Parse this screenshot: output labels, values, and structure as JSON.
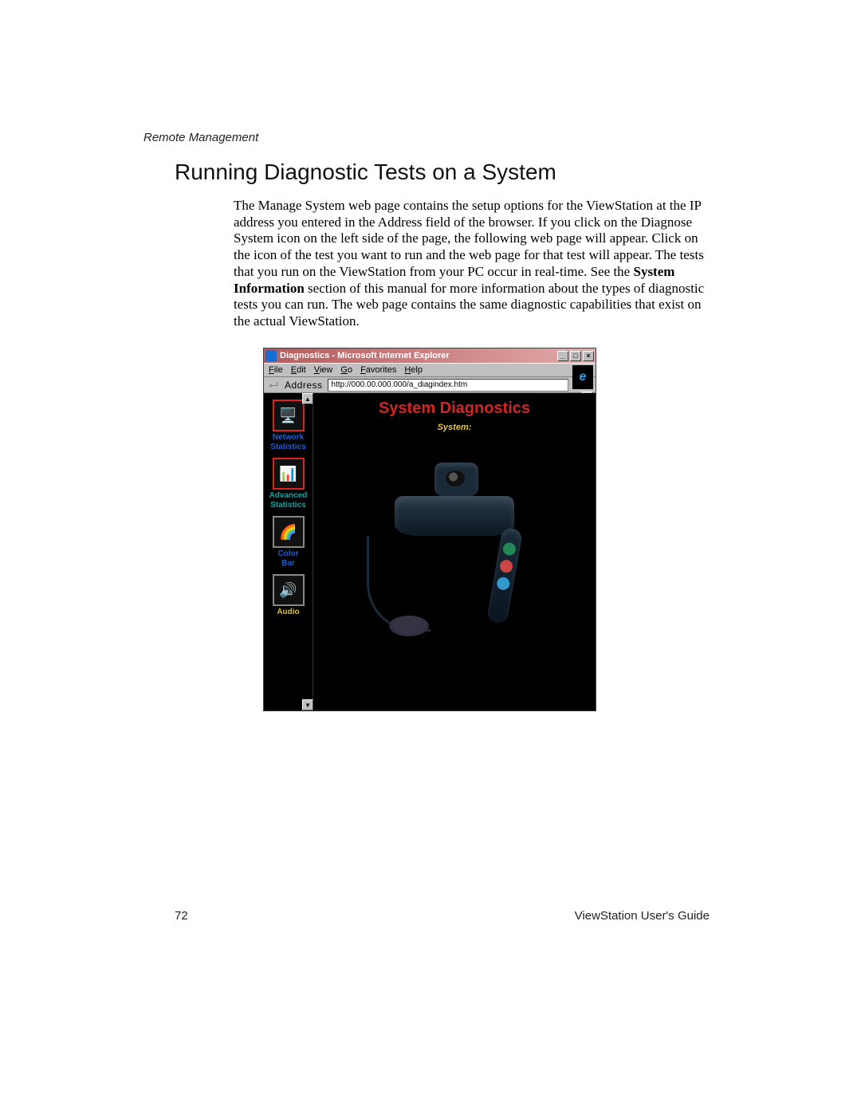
{
  "page": {
    "running_head": "Remote Management",
    "section_title": "Running Diagnostic Tests on a System",
    "body_html": "The Manage System web page contains the setup options for the ViewStation at the IP address you entered in the Address field of the browser. If you click on the Diagnose System icon on the left side of the page, the following web page will appear. Click on the icon of the test you want to run and the web page for that test will appear. The tests that you run on the ViewStation from your PC occur in real-time. See the <b>System Information</b> section of this manual for more information about the types of diagnostic tests you can run. The web page contains the same diagnostic capabilities that exist on the actual ViewStation.",
    "page_number": "72",
    "guide_title": "ViewStation User's Guide"
  },
  "window": {
    "titlebar": {
      "title": "Diagnostics - Microsoft Internet Explorer",
      "gradient_from": "#b55a5a",
      "gradient_to": "#e2aaaa",
      "btn_min": "_",
      "btn_max": "□",
      "btn_close": "×"
    },
    "menus": {
      "file": "File",
      "edit": "Edit",
      "view": "View",
      "go": "Go",
      "favorites": "Favorites",
      "help": "Help"
    },
    "toolbar": {
      "address_label": "Address",
      "address_value": "http://000.00.000.000/a_diagindex.htm",
      "back_glyph": "⮠"
    },
    "content": {
      "main_title": "System Diagnostics",
      "sub_title": "System:",
      "nav": [
        {
          "label": "Network Statistics",
          "label_color": "blue",
          "border": "red",
          "glyph": "🖥️"
        },
        {
          "label": "Advanced Statistics",
          "label_color": "teal",
          "border": "red",
          "glyph": "📊"
        },
        {
          "label": "Color Bar",
          "label_color": "blue",
          "border": "gray",
          "glyph": "🌈"
        },
        {
          "label": "Audio",
          "label_color": "yellow",
          "border": "gray",
          "glyph": "🔊"
        }
      ],
      "scroll_up": "▲",
      "scroll_down": "▼"
    }
  },
  "colors": {
    "page_bg": "#ffffff",
    "ie_chrome": "#c0c0c0",
    "content_bg": "#000000",
    "main_title_color": "#d02525",
    "sub_title_color": "#e8c939"
  }
}
